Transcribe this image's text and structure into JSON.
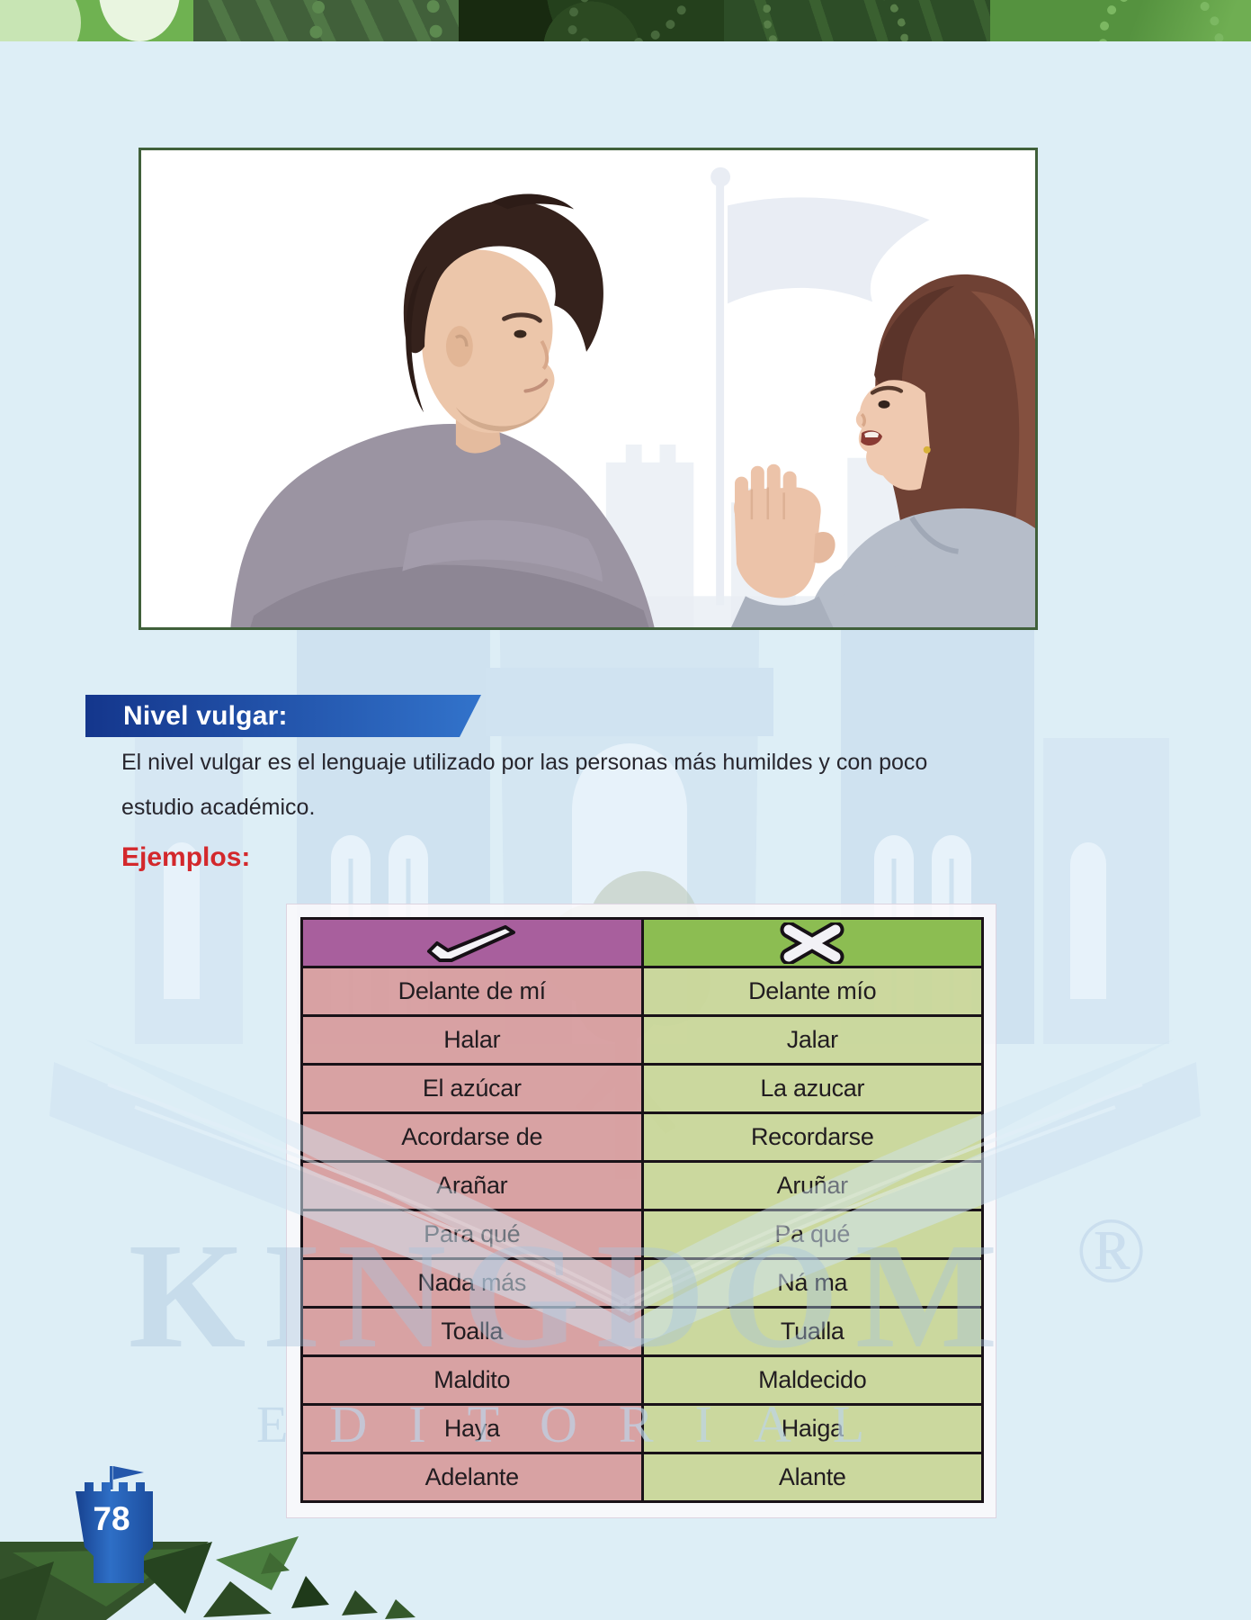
{
  "page": {
    "number": "78"
  },
  "colors": {
    "page_bg": "#ddeef6",
    "band1": "#6fb251",
    "band2": "#41603a",
    "band3": "#182a10",
    "band4": "#2d4d27",
    "band5": "#55923f",
    "photo_border": "#40603a",
    "banner_from": "#14368c",
    "banner_to": "#3273cb",
    "text_dark": "#27262e",
    "examples_red": "#d3282c",
    "table_border": "#191218",
    "th_correct": "#a85f9d",
    "th_vulgar": "#8cbd52"
  },
  "section": {
    "banner_label": "Nivel vulgar:",
    "paragraph": "El nivel vulgar es el lenguaje utilizado por las personas más humildes y con poco estudio académico.",
    "examples_label": "Ejemplos:"
  },
  "table": {
    "header_icons": [
      {
        "name": "check-icon"
      },
      {
        "name": "x-icon"
      }
    ],
    "rows": [
      [
        "Delante de mí",
        "Delante mío"
      ],
      [
        "Halar",
        "Jalar"
      ],
      [
        "El azúcar",
        "La azucar"
      ],
      [
        "Acordarse de",
        "Recordarse"
      ],
      [
        "Arañar",
        "Aruñar"
      ],
      [
        "Para qué",
        "Pa qué"
      ],
      [
        "Nada más",
        "Ná ma"
      ],
      [
        "Toalla",
        "Tualla"
      ],
      [
        "Maldito",
        "Maldecido"
      ],
      [
        "Haya",
        "Haiga"
      ],
      [
        "Adelante",
        "Alante"
      ]
    ]
  },
  "watermark": {
    "brand": "KINGDOM",
    "sub": "EDITORIAL",
    "registered": "®"
  }
}
